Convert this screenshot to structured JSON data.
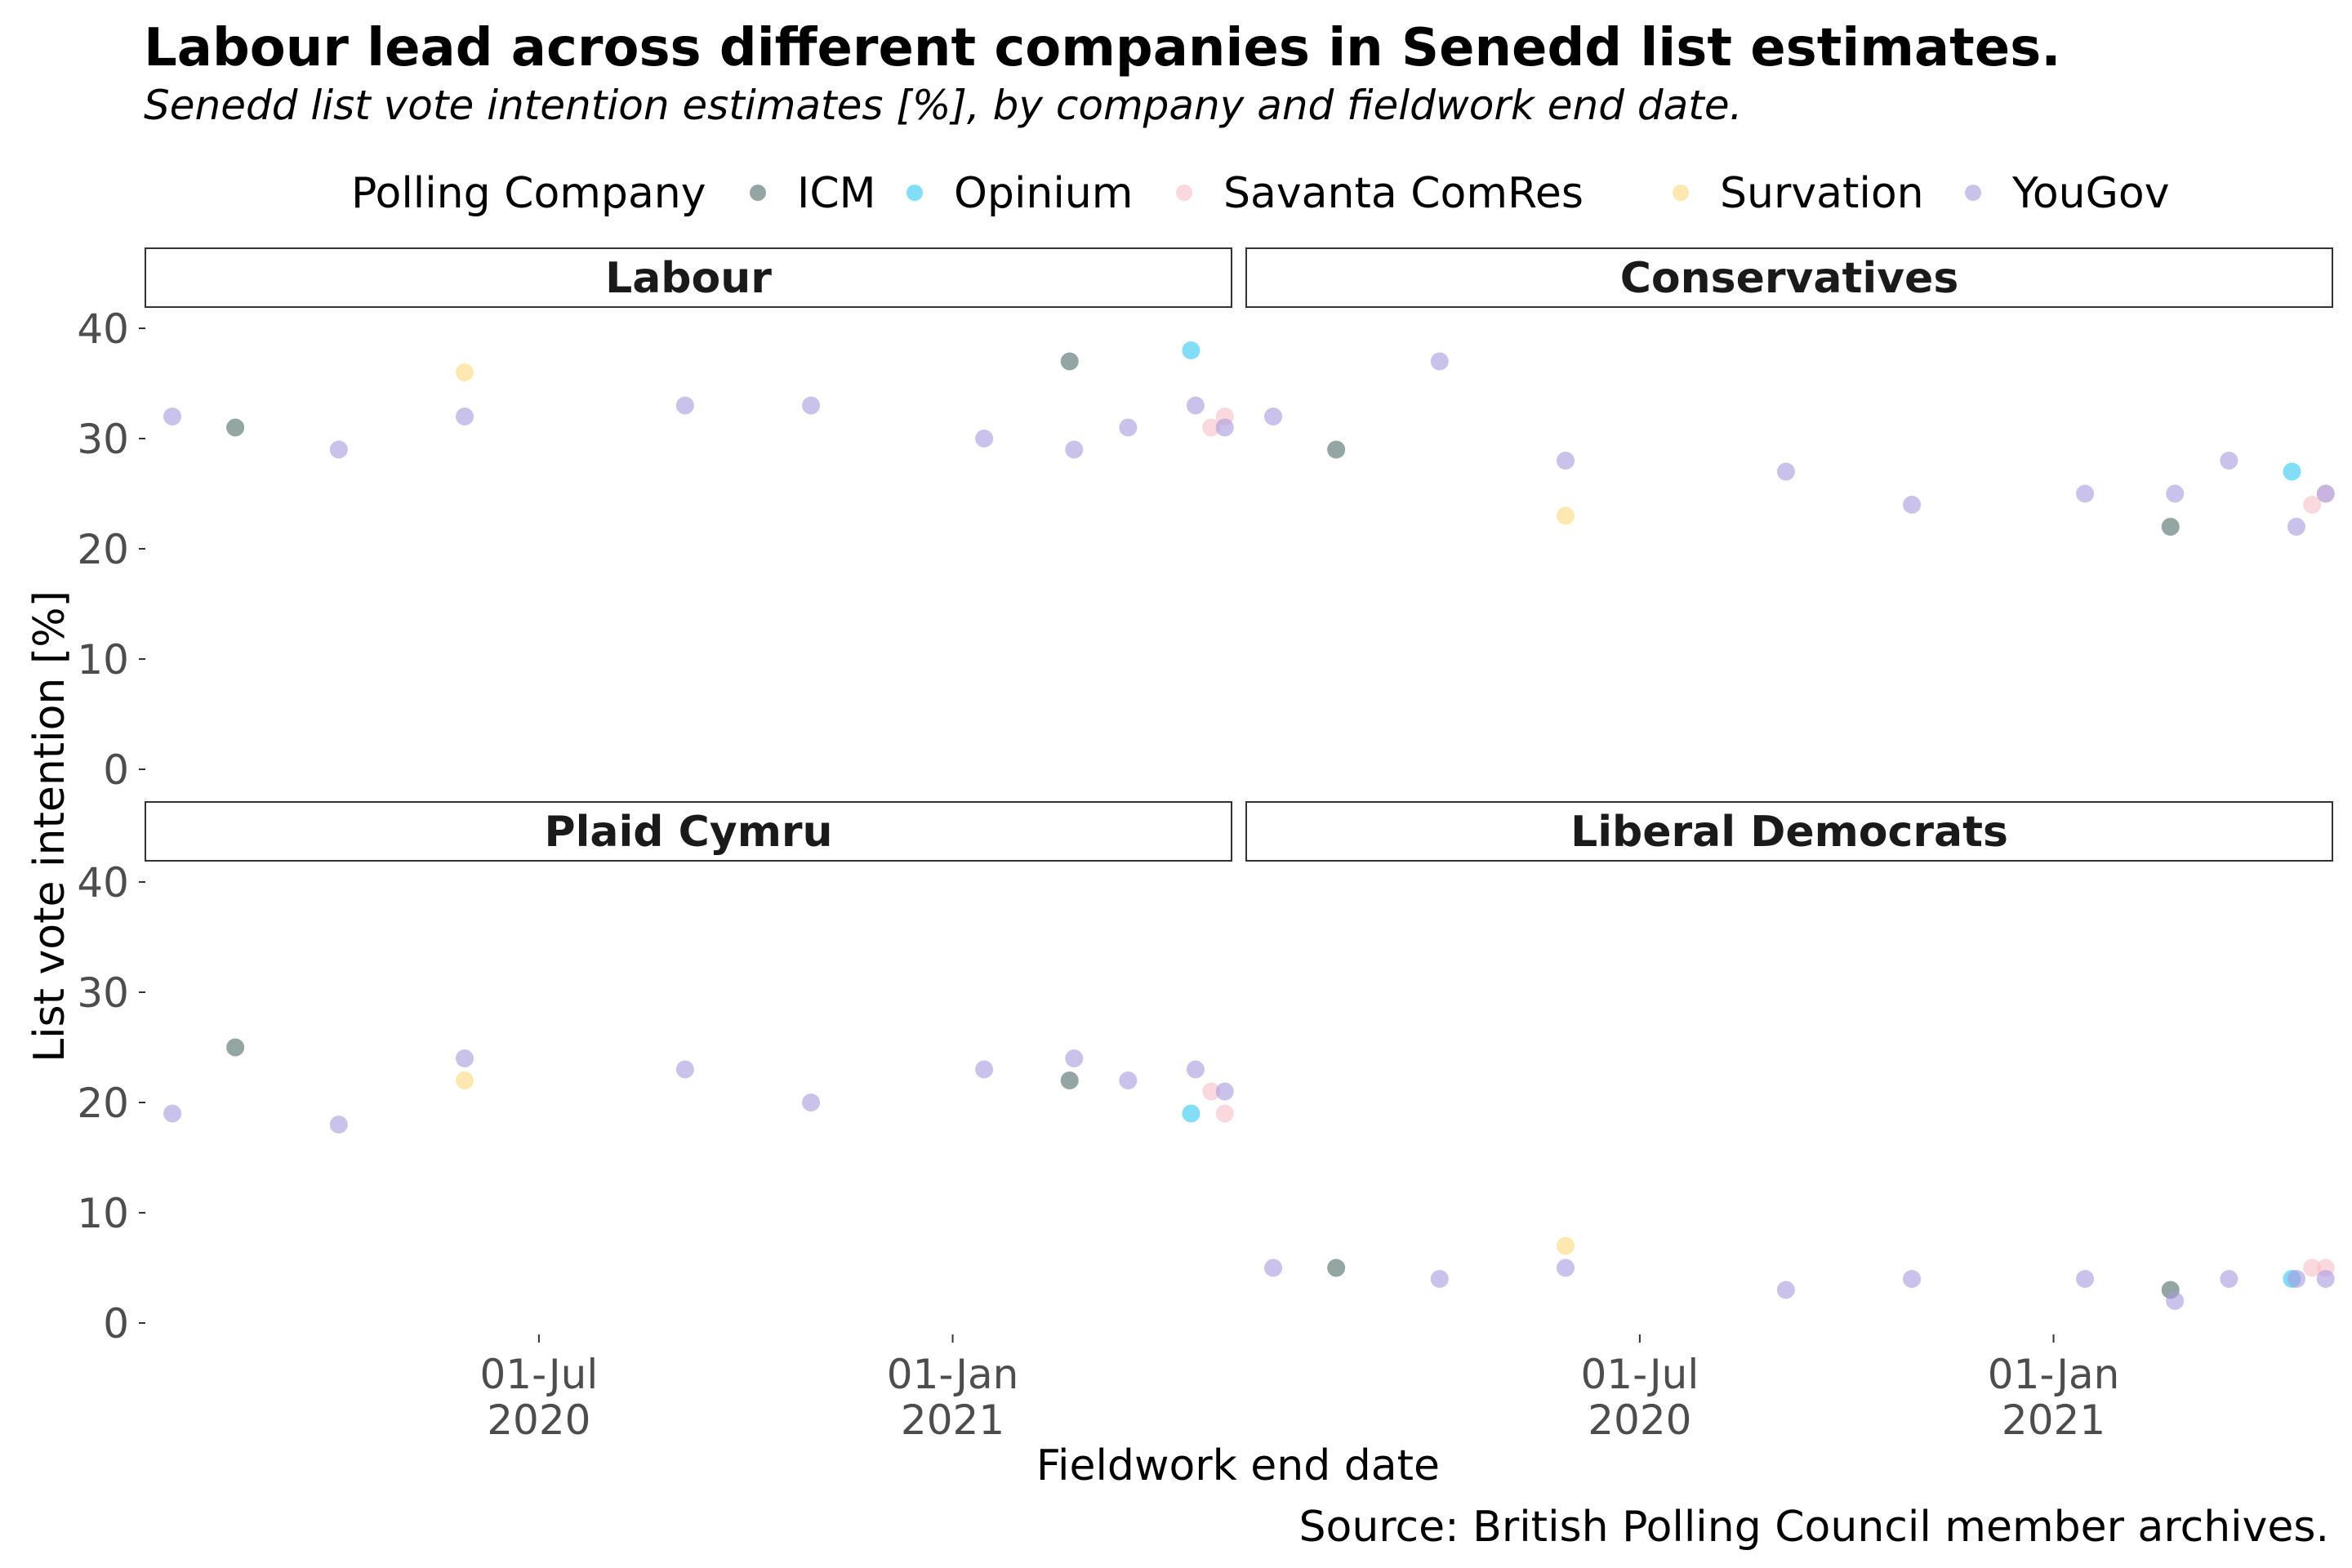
{
  "title": "Labour lead across different companies in Senedd list estimates.",
  "subtitle": "Senedd list vote intention estimates [%], by company and fieldwork end date.",
  "caption": "Source: British Polling Council member archives.",
  "chart_data": {
    "type": "scatter",
    "xlabel": "Fieldwork end date",
    "ylabel": "List vote intention [%]",
    "ylim": [
      0,
      40
    ],
    "yticks": [
      0,
      10,
      20,
      30,
      40
    ],
    "xlim": [
      "2020-01-08",
      "2021-05-05"
    ],
    "xticks": [
      {
        "date": "2020-07-01",
        "label_line1": "01-Jul",
        "label_line2": "2020"
      },
      {
        "date": "2021-01-01",
        "label_line1": "01-Jan",
        "label_line2": "2021"
      }
    ],
    "grid": false,
    "legend": {
      "title": "Polling Company",
      "placement": "top",
      "entries": [
        {
          "name": "ICM",
          "color": "#4d6b68"
        },
        {
          "name": "Opinium",
          "color": "#2ec8f0"
        },
        {
          "name": "Savanta ComRes",
          "color": "#f6c0c8"
        },
        {
          "name": "Survation",
          "color": "#fbd97a"
        },
        {
          "name": "YouGov",
          "color": "#a89ae0"
        }
      ]
    },
    "panels": [
      {
        "party": "Labour",
        "points": [
          {
            "date": "2020-01-20",
            "company": "YouGov",
            "value": 32
          },
          {
            "date": "2020-02-17",
            "company": "ICM",
            "value": 31
          },
          {
            "date": "2020-04-03",
            "company": "YouGov",
            "value": 29
          },
          {
            "date": "2020-05-29",
            "company": "Survation",
            "value": 36
          },
          {
            "date": "2020-05-29",
            "company": "YouGov",
            "value": 32
          },
          {
            "date": "2020-09-04",
            "company": "YouGov",
            "value": 33
          },
          {
            "date": "2020-10-30",
            "company": "YouGov",
            "value": 33
          },
          {
            "date": "2021-01-15",
            "company": "YouGov",
            "value": 30
          },
          {
            "date": "2021-02-22",
            "company": "ICM",
            "value": 37
          },
          {
            "date": "2021-02-24",
            "company": "YouGov",
            "value": 29
          },
          {
            "date": "2021-03-20",
            "company": "YouGov",
            "value": 31
          },
          {
            "date": "2021-04-17",
            "company": "Opinium",
            "value": 38
          },
          {
            "date": "2021-04-19",
            "company": "YouGov",
            "value": 33
          },
          {
            "date": "2021-04-26",
            "company": "Savanta ComRes",
            "value": 31
          },
          {
            "date": "2021-05-02",
            "company": "Savanta ComRes",
            "value": 32
          },
          {
            "date": "2021-05-02",
            "company": "YouGov",
            "value": 31
          }
        ]
      },
      {
        "party": "Conservatives",
        "points": [
          {
            "date": "2020-01-20",
            "company": "YouGov",
            "value": 32
          },
          {
            "date": "2020-02-17",
            "company": "ICM",
            "value": 29
          },
          {
            "date": "2020-04-03",
            "company": "YouGov",
            "value": 37
          },
          {
            "date": "2020-05-29",
            "company": "Survation",
            "value": 23
          },
          {
            "date": "2020-05-29",
            "company": "YouGov",
            "value": 28
          },
          {
            "date": "2020-09-04",
            "company": "YouGov",
            "value": 27
          },
          {
            "date": "2020-10-30",
            "company": "YouGov",
            "value": 24
          },
          {
            "date": "2021-01-15",
            "company": "YouGov",
            "value": 25
          },
          {
            "date": "2021-02-22",
            "company": "ICM",
            "value": 22
          },
          {
            "date": "2021-02-24",
            "company": "YouGov",
            "value": 25
          },
          {
            "date": "2021-03-20",
            "company": "YouGov",
            "value": 28
          },
          {
            "date": "2021-04-17",
            "company": "Opinium",
            "value": 27
          },
          {
            "date": "2021-04-19",
            "company": "YouGov",
            "value": 22
          },
          {
            "date": "2021-04-26",
            "company": "Savanta ComRes",
            "value": 24
          },
          {
            "date": "2021-05-02",
            "company": "Savanta ComRes",
            "value": 25
          },
          {
            "date": "2021-05-02",
            "company": "YouGov",
            "value": 25
          }
        ]
      },
      {
        "party": "Plaid Cymru",
        "points": [
          {
            "date": "2020-01-20",
            "company": "YouGov",
            "value": 19
          },
          {
            "date": "2020-02-17",
            "company": "ICM",
            "value": 25
          },
          {
            "date": "2020-04-03",
            "company": "YouGov",
            "value": 18
          },
          {
            "date": "2020-05-29",
            "company": "Survation",
            "value": 22
          },
          {
            "date": "2020-05-29",
            "company": "YouGov",
            "value": 24
          },
          {
            "date": "2020-09-04",
            "company": "YouGov",
            "value": 23
          },
          {
            "date": "2020-10-30",
            "company": "YouGov",
            "value": 20
          },
          {
            "date": "2021-01-15",
            "company": "YouGov",
            "value": 23
          },
          {
            "date": "2021-02-22",
            "company": "ICM",
            "value": 22
          },
          {
            "date": "2021-02-24",
            "company": "YouGov",
            "value": 24
          },
          {
            "date": "2021-03-20",
            "company": "YouGov",
            "value": 22
          },
          {
            "date": "2021-04-17",
            "company": "Opinium",
            "value": 19
          },
          {
            "date": "2021-04-19",
            "company": "YouGov",
            "value": 23
          },
          {
            "date": "2021-04-26",
            "company": "Savanta ComRes",
            "value": 21
          },
          {
            "date": "2021-05-02",
            "company": "Savanta ComRes",
            "value": 19
          },
          {
            "date": "2021-05-02",
            "company": "YouGov",
            "value": 21
          }
        ]
      },
      {
        "party": "Liberal Democrats",
        "points": [
          {
            "date": "2020-01-20",
            "company": "YouGov",
            "value": 5
          },
          {
            "date": "2020-02-17",
            "company": "ICM",
            "value": 5
          },
          {
            "date": "2020-04-03",
            "company": "YouGov",
            "value": 4
          },
          {
            "date": "2020-05-29",
            "company": "Survation",
            "value": 7
          },
          {
            "date": "2020-05-29",
            "company": "YouGov",
            "value": 5
          },
          {
            "date": "2020-09-04",
            "company": "YouGov",
            "value": 3
          },
          {
            "date": "2020-10-30",
            "company": "YouGov",
            "value": 4
          },
          {
            "date": "2021-01-15",
            "company": "YouGov",
            "value": 4
          },
          {
            "date": "2021-02-22",
            "company": "ICM",
            "value": 3
          },
          {
            "date": "2021-02-24",
            "company": "YouGov",
            "value": 2
          },
          {
            "date": "2021-03-20",
            "company": "YouGov",
            "value": 4
          },
          {
            "date": "2021-04-17",
            "company": "Opinium",
            "value": 4
          },
          {
            "date": "2021-04-19",
            "company": "YouGov",
            "value": 4
          },
          {
            "date": "2021-04-26",
            "company": "Savanta ComRes",
            "value": 5
          },
          {
            "date": "2021-05-02",
            "company": "Savanta ComRes",
            "value": 5
          },
          {
            "date": "2021-05-02",
            "company": "YouGov",
            "value": 4
          }
        ]
      }
    ]
  }
}
